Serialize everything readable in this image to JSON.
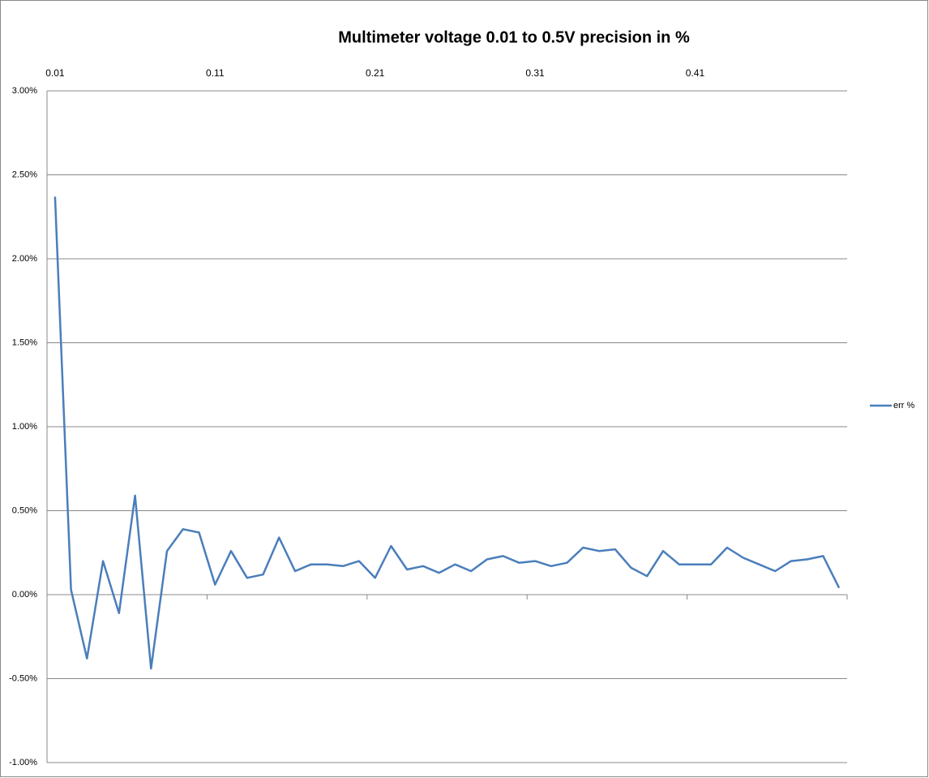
{
  "chart_data": {
    "type": "line",
    "title": "Multimeter voltage 0.01 to 0.5V precision in %",
    "categories": [
      "0.01",
      null,
      null,
      null,
      null,
      null,
      null,
      null,
      null,
      null,
      "0.11",
      null,
      null,
      null,
      null,
      null,
      null,
      null,
      null,
      null,
      "0.21",
      null,
      null,
      null,
      null,
      null,
      null,
      null,
      null,
      null,
      "0.31",
      null,
      null,
      null,
      null,
      null,
      null,
      null,
      null,
      null,
      "0.41",
      null,
      null,
      null,
      null,
      null,
      null,
      null,
      null,
      null
    ],
    "series": [
      {
        "name": "err %",
        "color": "#4a7ebb",
        "values": [
          2.37,
          0.03,
          -0.38,
          0.2,
          -0.11,
          0.59,
          -0.44,
          0.26,
          0.39,
          0.37,
          0.06,
          0.26,
          0.1,
          0.12,
          0.34,
          0.14,
          0.18,
          0.18,
          0.17,
          0.2,
          0.1,
          0.29,
          0.15,
          0.17,
          0.13,
          0.18,
          0.14,
          0.21,
          0.23,
          0.19,
          0.2,
          0.17,
          0.19,
          0.28,
          0.26,
          0.27,
          0.16,
          0.11,
          0.26,
          0.18,
          0.18,
          0.18,
          0.28,
          0.22,
          0.18,
          0.14,
          0.2,
          0.21,
          0.23,
          0.04
        ]
      }
    ],
    "ylim": [
      -1,
      3
    ],
    "yticks": [
      {
        "value": -1,
        "label": "-1.00%"
      },
      {
        "value": -0.5,
        "label": "-0.50%"
      },
      {
        "value": 0,
        "label": "0.00%"
      },
      {
        "value": 0.5,
        "label": "0.50%"
      },
      {
        "value": 1,
        "label": "1.00%"
      },
      {
        "value": 1.5,
        "label": "1.50%"
      },
      {
        "value": 2,
        "label": "2.00%"
      },
      {
        "value": 2.5,
        "label": "2.50%"
      },
      {
        "value": 3,
        "label": "3.00%"
      }
    ],
    "grid": true,
    "legend": "right"
  }
}
